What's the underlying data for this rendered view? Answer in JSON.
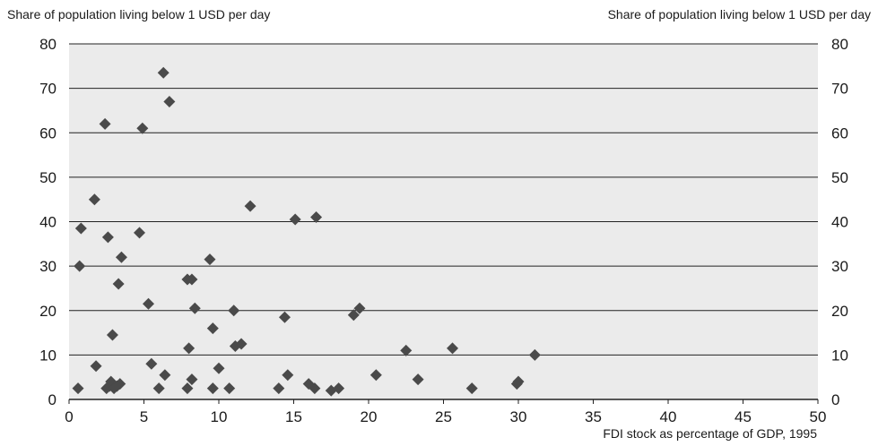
{
  "chart_data": {
    "type": "scatter",
    "ylabel_left": "Share of population living below 1 USD per day",
    "ylabel_right": "Share of population living below 1 USD per day",
    "xlabel": "FDI stock as percentage of GDP, 1995",
    "xlim": [
      0,
      50
    ],
    "ylim": [
      0,
      80
    ],
    "x_ticks": [
      0,
      5,
      10,
      15,
      20,
      25,
      30,
      35,
      40,
      45,
      50
    ],
    "y_ticks": [
      0,
      10,
      20,
      30,
      40,
      50,
      60,
      70,
      80
    ],
    "grid": "horizontal",
    "plot_background": "#ebebeb",
    "marker_color": "#4a4a4a",
    "marker": "diamond",
    "points": [
      {
        "x": 0.6,
        "y": 2.5
      },
      {
        "x": 0.7,
        "y": 30
      },
      {
        "x": 0.8,
        "y": 38.5
      },
      {
        "x": 1.7,
        "y": 45
      },
      {
        "x": 1.8,
        "y": 7.5
      },
      {
        "x": 2.4,
        "y": 62
      },
      {
        "x": 2.5,
        "y": 2.5
      },
      {
        "x": 2.6,
        "y": 36.5
      },
      {
        "x": 2.7,
        "y": 3
      },
      {
        "x": 2.8,
        "y": 4
      },
      {
        "x": 2.9,
        "y": 14.5
      },
      {
        "x": 3.0,
        "y": 2.5
      },
      {
        "x": 3.2,
        "y": 3
      },
      {
        "x": 3.3,
        "y": 26
      },
      {
        "x": 3.4,
        "y": 3.5
      },
      {
        "x": 3.5,
        "y": 32
      },
      {
        "x": 4.7,
        "y": 37.5
      },
      {
        "x": 4.9,
        "y": 61
      },
      {
        "x": 5.3,
        "y": 21.5
      },
      {
        "x": 5.5,
        "y": 8
      },
      {
        "x": 6.0,
        "y": 2.5
      },
      {
        "x": 6.3,
        "y": 73.5
      },
      {
        "x": 6.4,
        "y": 5.5
      },
      {
        "x": 6.7,
        "y": 67
      },
      {
        "x": 7.9,
        "y": 27
      },
      {
        "x": 7.9,
        "y": 2.5
      },
      {
        "x": 8.0,
        "y": 11.5
      },
      {
        "x": 8.2,
        "y": 27
      },
      {
        "x": 8.2,
        "y": 4.5
      },
      {
        "x": 8.4,
        "y": 20.5
      },
      {
        "x": 9.4,
        "y": 31.5
      },
      {
        "x": 9.6,
        "y": 16
      },
      {
        "x": 9.6,
        "y": 2.5
      },
      {
        "x": 10.0,
        "y": 7
      },
      {
        "x": 10.7,
        "y": 2.5
      },
      {
        "x": 11.0,
        "y": 20
      },
      {
        "x": 11.1,
        "y": 12
      },
      {
        "x": 11.5,
        "y": 12.5
      },
      {
        "x": 12.1,
        "y": 43.5
      },
      {
        "x": 14.0,
        "y": 2.5
      },
      {
        "x": 14.4,
        "y": 18.5
      },
      {
        "x": 14.6,
        "y": 5.5
      },
      {
        "x": 15.1,
        "y": 40.5
      },
      {
        "x": 16.0,
        "y": 3.5
      },
      {
        "x": 16.4,
        "y": 2.5
      },
      {
        "x": 16.5,
        "y": 41
      },
      {
        "x": 17.5,
        "y": 2
      },
      {
        "x": 18.0,
        "y": 2.5
      },
      {
        "x": 19.0,
        "y": 19
      },
      {
        "x": 19.4,
        "y": 20.5
      },
      {
        "x": 20.5,
        "y": 5.5
      },
      {
        "x": 22.5,
        "y": 11
      },
      {
        "x": 23.3,
        "y": 4.5
      },
      {
        "x": 25.6,
        "y": 11.5
      },
      {
        "x": 26.9,
        "y": 2.5
      },
      {
        "x": 29.9,
        "y": 3.5
      },
      {
        "x": 30.0,
        "y": 4
      },
      {
        "x": 31.1,
        "y": 10
      }
    ]
  }
}
